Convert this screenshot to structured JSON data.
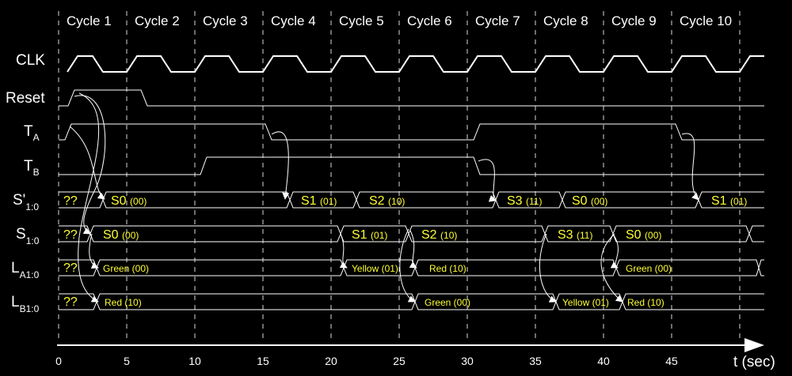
{
  "cycles": [
    "Cycle 1",
    "Cycle 2",
    "Cycle 3",
    "Cycle 4",
    "Cycle 5",
    "Cycle 6",
    "Cycle 7",
    "Cycle 8",
    "Cycle 9",
    "Cycle 10"
  ],
  "signals": {
    "clk": {
      "name": "CLK"
    },
    "reset": {
      "name": "Reset"
    },
    "ta": {
      "name": "T",
      "sub": "A"
    },
    "tb": {
      "name": "T",
      "sub": "B"
    },
    "snext": {
      "name": "S'",
      "sub": "1:0"
    },
    "s": {
      "name": "S",
      "sub": "1:0"
    },
    "la": {
      "name": "L",
      "sub": "A1:0"
    },
    "lb": {
      "name": "L",
      "sub": "B1:0"
    }
  },
  "bus_values": {
    "snext": [
      {
        "text": "??",
        "code": ""
      },
      {
        "text": "S0",
        "code": "(00)"
      },
      {
        "text": "S1",
        "code": "(01)"
      },
      {
        "text": "S2",
        "code": "(10)"
      },
      {
        "text": "S3",
        "code": "(11)"
      },
      {
        "text": "S0",
        "code": "(00)"
      },
      {
        "text": "S1",
        "code": "(01)"
      }
    ],
    "s": [
      {
        "text": "??",
        "code": ""
      },
      {
        "text": "S0",
        "code": "(00)"
      },
      {
        "text": "S1",
        "code": "(01)"
      },
      {
        "text": "S2",
        "code": "(10)"
      },
      {
        "text": "S3",
        "code": "(11)"
      },
      {
        "text": "S0",
        "code": "(00)"
      }
    ],
    "la": [
      {
        "text": "??"
      },
      {
        "text": "Green (00)"
      },
      {
        "text": "Yellow (01)"
      },
      {
        "text": "Red (10)"
      },
      {
        "text": "Green (00)"
      }
    ],
    "lb": [
      {
        "text": "??"
      },
      {
        "text": "Red (10)"
      },
      {
        "text": "Green (00)"
      },
      {
        "text": "Yellow (01)"
      },
      {
        "text": "Red (10)"
      }
    ]
  },
  "axis": {
    "label": "t (sec)",
    "ticks": [
      "0",
      "5",
      "10",
      "15",
      "20",
      "25",
      "30",
      "35",
      "40",
      "45"
    ]
  },
  "colors": {
    "background": "#000000",
    "wave": "#ffffff",
    "value_text": "#ffff33"
  }
}
